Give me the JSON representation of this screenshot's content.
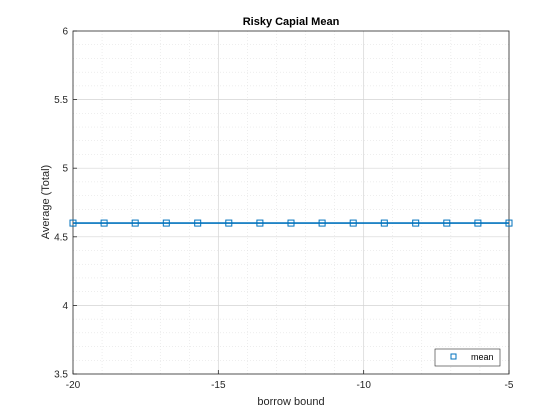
{
  "chart_data": {
    "type": "line",
    "title": "Risky Capial Mean",
    "xlabel": "borrow bound",
    "ylabel": "Average (Total)",
    "xlim": [
      -20,
      -5
    ],
    "ylim": [
      3.5,
      6
    ],
    "x_ticks": [
      -20,
      -15,
      -10,
      -5
    ],
    "y_ticks": [
      3.5,
      4,
      4.5,
      5,
      5.5,
      6
    ],
    "grid": true,
    "minor_grid": true,
    "legend_position": "bottom-right",
    "series": [
      {
        "name": "mean",
        "color": "#0072BD",
        "marker": "square",
        "x": [
          -20,
          -18.93,
          -17.86,
          -16.79,
          -15.71,
          -14.64,
          -13.57,
          -12.5,
          -11.43,
          -10.36,
          -9.29,
          -8.21,
          -7.14,
          -6.07,
          -5
        ],
        "y": [
          4.6,
          4.6,
          4.6,
          4.6,
          4.6,
          4.6,
          4.6,
          4.6,
          4.6,
          4.6,
          4.6,
          4.6,
          4.6,
          4.6,
          4.6
        ]
      }
    ]
  }
}
